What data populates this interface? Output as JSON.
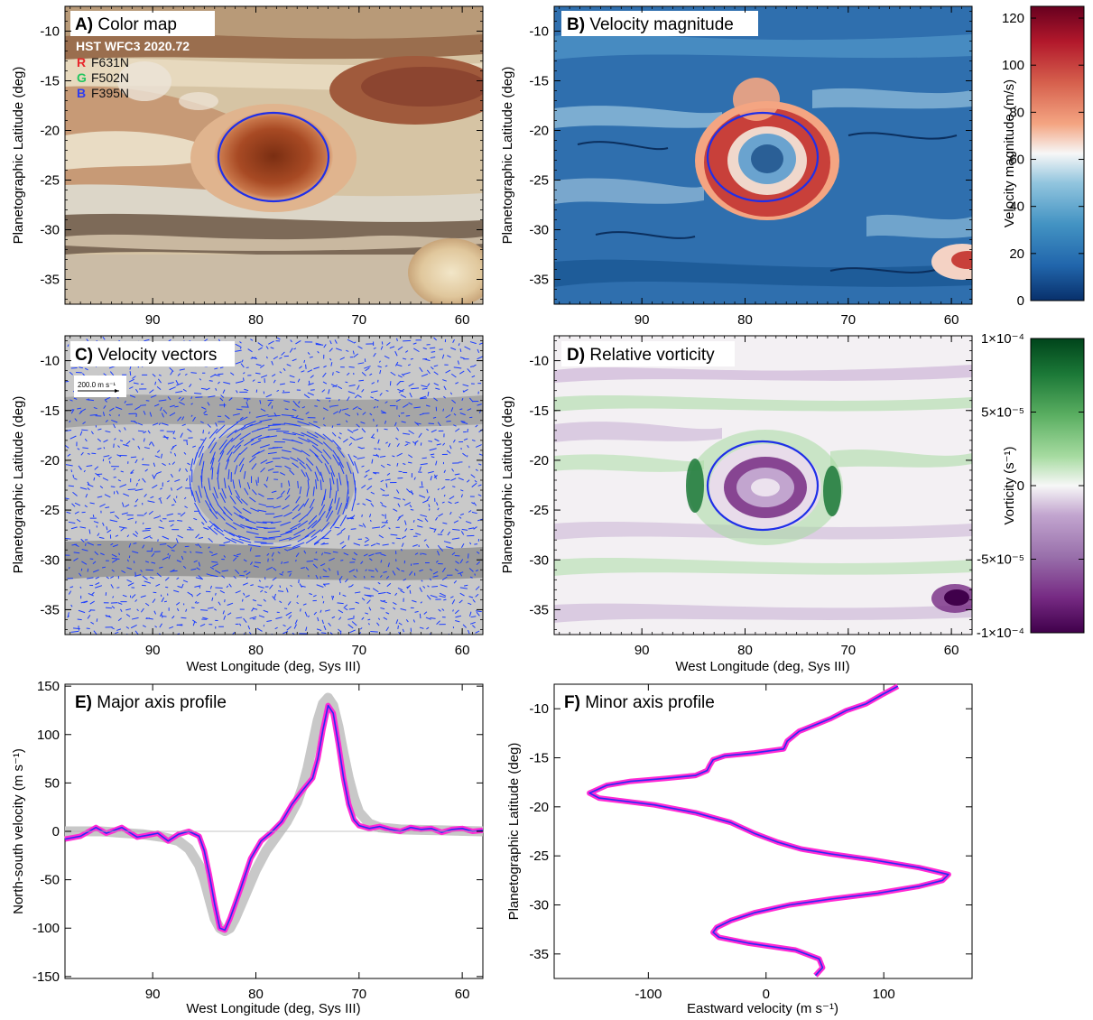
{
  "figure": {
    "x_axis_label": "West Longitude (deg, Sys III)",
    "lat_axis_label": "Planetographic Latitude (deg)",
    "lon_ticks": [
      90,
      80,
      70,
      60
    ],
    "lat_ticks": [
      -10,
      -15,
      -20,
      -25,
      -30,
      -35
    ]
  },
  "panels": {
    "A": {
      "letter": "A)",
      "title": "Color map",
      "source": "HST WFC3 2020.72",
      "filters": [
        {
          "channel": "R",
          "name": "F631N",
          "color": "#e8262b"
        },
        {
          "channel": "G",
          "name": "F502N",
          "color": "#22c55e"
        },
        {
          "channel": "B",
          "name": "F395N",
          "color": "#2e3cf0"
        }
      ]
    },
    "B": {
      "letter": "B)",
      "title": "Velocity magnitude"
    },
    "C": {
      "letter": "C)",
      "title": "Velocity vectors",
      "scale_label": "200.0 m s⁻¹"
    },
    "D": {
      "letter": "D)",
      "title": "Relative vorticity"
    },
    "E": {
      "letter": "E)",
      "title": "Major axis profile"
    },
    "F": {
      "letter": "F)",
      "title": "Minor axis profile"
    }
  },
  "colorbars": {
    "velocity": {
      "label": "Velocity magnitude (m/s)",
      "ticks": [
        "0",
        "20",
        "40",
        "60",
        "80",
        "100",
        "120"
      ],
      "range": [
        0,
        125
      ],
      "colors": [
        "#08306b",
        "#2166ac",
        "#4393c3",
        "#92c5de",
        "#f7f7f7",
        "#f4a582",
        "#d6604d",
        "#b2182b",
        "#67001f"
      ]
    },
    "vorticity": {
      "label": "Vorticity (s⁻¹)",
      "ticks": [
        "1×10⁻⁴",
        "5×10⁻⁵",
        "0",
        "-5×10⁻⁵",
        "-1×10⁻⁴"
      ],
      "range": [
        -0.0001,
        0.0001
      ],
      "colors": [
        "#00441b",
        "#1b7837",
        "#5aae61",
        "#a6dba0",
        "#f7f7f7",
        "#c2a5cf",
        "#9970ab",
        "#762a83",
        "#40004b"
      ]
    }
  },
  "chart_data": [
    {
      "panel": "E",
      "type": "line",
      "xlabel": "West Longitude (deg, Sys III)",
      "ylabel": "North-south velocity (m s⁻¹)",
      "xlim": [
        98.5,
        58
      ],
      "ylim": [
        -152,
        152
      ],
      "x_ticks": [
        90,
        80,
        70,
        60
      ],
      "y_ticks": [
        -150,
        -100,
        -50,
        0,
        50,
        100,
        150
      ],
      "series": [
        {
          "x": [
            98.5,
            97,
            95.5,
            94.5,
            93,
            91.5,
            90.5,
            89.5,
            88.5,
            87.5,
            86.5,
            85.5,
            85,
            84.5,
            84,
            83.5,
            83,
            82.5,
            81.5,
            80.5,
            79.5,
            78.5,
            77.5,
            76.5,
            75.5,
            74.5,
            74,
            73.5,
            73,
            72.5,
            72,
            71.5,
            71,
            70.5,
            70,
            69,
            68,
            67,
            66,
            65,
            64,
            63,
            62,
            61,
            60,
            59,
            58
          ],
          "y": [
            -8,
            -5,
            4,
            -2,
            4,
            -6,
            -4,
            -2,
            -10,
            -3,
            0,
            -5,
            -20,
            -45,
            -75,
            -100,
            -102,
            -90,
            -60,
            -28,
            -10,
            -1,
            10,
            28,
            42,
            55,
            75,
            105,
            130,
            122,
            90,
            55,
            28,
            12,
            6,
            3,
            5,
            2,
            0,
            4,
            2,
            3,
            -1,
            2,
            3,
            0,
            1
          ]
        },
        {
          "x": [
            98.5,
            95,
            91,
            89,
            87.5,
            86.5,
            85.5,
            85,
            84.5,
            84,
            83.5,
            83,
            82.5,
            82,
            81,
            80,
            79,
            78,
            77,
            76,
            75.5,
            75,
            74.5,
            74,
            73.5,
            73,
            72.5,
            72,
            71.5,
            71,
            70.5,
            70,
            69,
            68,
            66,
            62,
            58
          ],
          "y": [
            0,
            0,
            -3,
            -6,
            -10,
            -18,
            -35,
            -50,
            -70,
            -90,
            -100,
            -103,
            -100,
            -90,
            -65,
            -40,
            -20,
            -5,
            10,
            30,
            45,
            65,
            90,
            115,
            132,
            138,
            130,
            108,
            80,
            55,
            35,
            20,
            8,
            4,
            2,
            1,
            0
          ]
        }
      ]
    },
    {
      "panel": "F",
      "type": "line",
      "xlabel": "Eastward velocity (m s⁻¹)",
      "ylabel": "Planetographic Latitude (deg)",
      "xlim": [
        -180,
        175
      ],
      "ylim": [
        -37.5,
        -7.5
      ],
      "x_ticks": [
        -100,
        0,
        100
      ],
      "y_ticks": [
        -10,
        -15,
        -20,
        -25,
        -30,
        -35
      ],
      "series": [
        {
          "x": [
            112,
            98,
            85,
            68,
            55,
            28,
            18,
            15,
            -10,
            -35,
            -45,
            -48,
            -50,
            -60,
            -85,
            -115,
            -135,
            -150,
            -142,
            -122,
            -95,
            -60,
            -30,
            -10,
            10,
            30,
            55,
            90,
            130,
            155,
            150,
            130,
            95,
            55,
            20,
            -10,
            -30,
            -42,
            -45,
            -40,
            -15,
            25,
            45,
            48,
            42
          ],
          "y": [
            -7.7,
            -8.6,
            -9.5,
            -10.2,
            -11,
            -12.3,
            -13.3,
            -14.1,
            -14.5,
            -14.8,
            -15.2,
            -15.8,
            -16.3,
            -16.8,
            -17.1,
            -17.4,
            -17.8,
            -18.6,
            -19.1,
            -19.4,
            -19.8,
            -20.6,
            -21.6,
            -22.7,
            -23.6,
            -24.3,
            -24.8,
            -25.4,
            -26.2,
            -26.9,
            -27.5,
            -28.1,
            -28.8,
            -29.4,
            -30,
            -30.8,
            -31.6,
            -32.3,
            -32.8,
            -33.3,
            -33.9,
            -34.6,
            -35.5,
            -36.4,
            -37.2
          ]
        }
      ]
    }
  ]
}
